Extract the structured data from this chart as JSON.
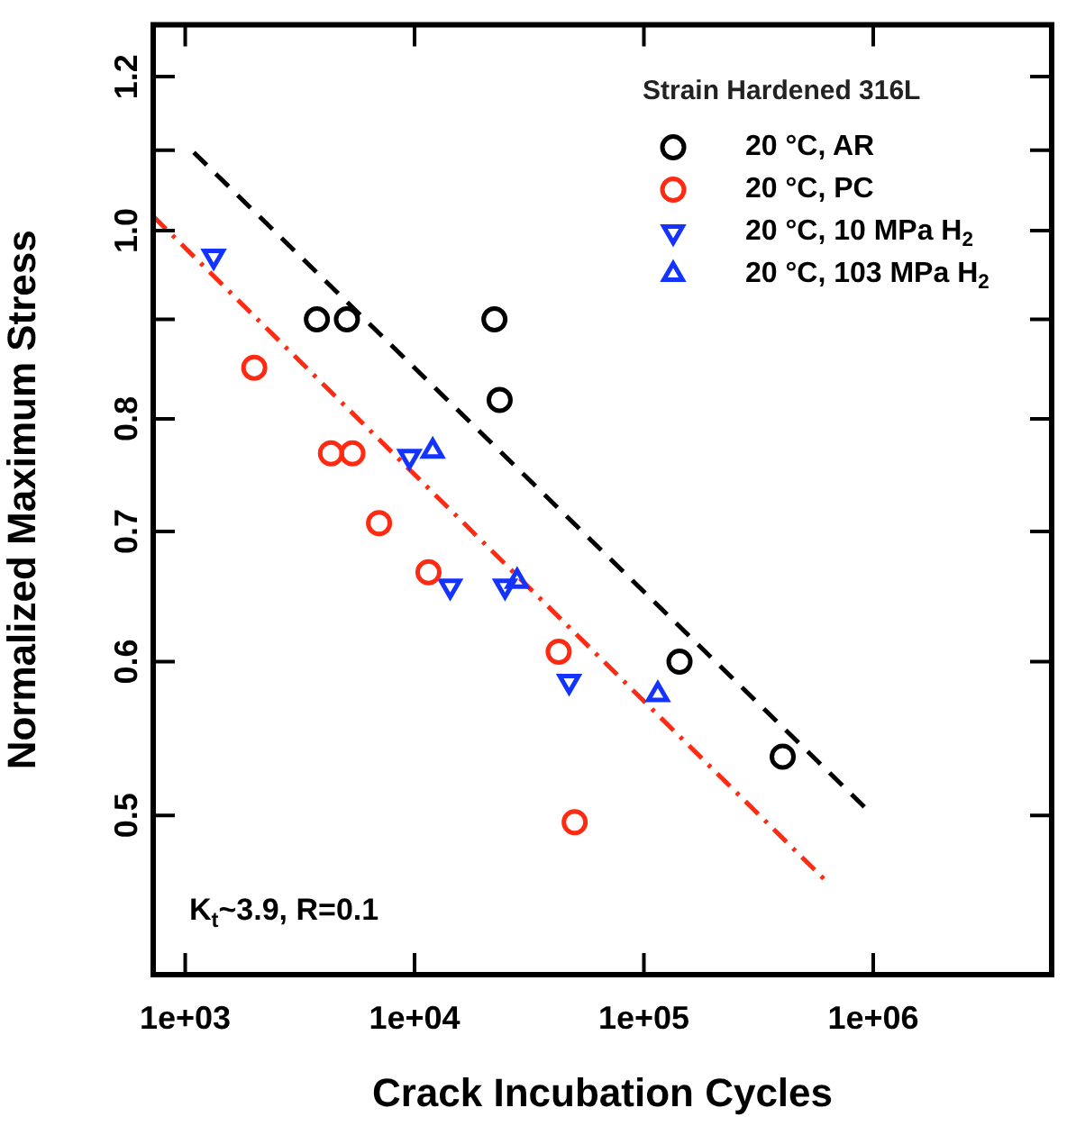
{
  "chart_data": {
    "type": "scatter",
    "xlabel": "Crack Incubation Cycles",
    "ylabel": "Normalized Maximum Stress",
    "legend_title": "Strain Hardened 316L",
    "log": "xy",
    "grid": false,
    "legend": "top right",
    "xlim": [
      725,
      6000000
    ],
    "ylim": [
      0.414,
      1.276
    ],
    "xticks": [
      {
        "value": 1000,
        "label": "1e+03"
      },
      {
        "value": 10000,
        "label": "1e+04"
      },
      {
        "value": 100000,
        "label": "1e+05"
      },
      {
        "value": 1000000,
        "label": "1e+06"
      }
    ],
    "yticks": [
      {
        "value": 0.5,
        "label": "0.5"
      },
      {
        "value": 0.6,
        "label": "0.6"
      },
      {
        "value": 0.7,
        "label": "0.7"
      },
      {
        "value": 0.8,
        "label": "0.8"
      },
      {
        "value": 0.9,
        "label": null
      },
      {
        "value": 1.0,
        "label": "1.0"
      },
      {
        "value": 1.1,
        "label": null
      },
      {
        "value": 1.2,
        "label": "1.2"
      }
    ],
    "annotations": [
      "K$_{t}$~3.9, R=0.1"
    ],
    "series": [
      {
        "name": "20 °C, AR",
        "color": "#000000",
        "marker": "circle",
        "x": [
          3750,
          5070,
          22300,
          23500,
          143000,
          403000
        ],
        "values": [
          0.9,
          0.9,
          0.9,
          0.818,
          0.6,
          0.536
        ]
      },
      {
        "name": "20 °C, PC",
        "color": "#ff2a12",
        "marker": "circle",
        "x": [
          2000,
          4320,
          5360,
          7000,
          11500,
          42500,
          49900
        ],
        "values": [
          0.85,
          0.768,
          0.768,
          0.707,
          0.667,
          0.607,
          0.496
        ]
      },
      {
        "name": "20 °C, 10 MPa H$_{2}$",
        "color": "#1433ff",
        "marker": "triangle-down",
        "x": [
          1330,
          9500,
          14300,
          24800,
          47200
        ],
        "values": [
          0.97,
          0.765,
          0.656,
          0.656,
          0.586
        ]
      },
      {
        "name": "20 °C, 103 MPa H$_{2}$",
        "color": "#1433ff",
        "marker": "triangle",
        "x": [
          12000,
          28000,
          115000
        ],
        "values": [
          0.77,
          0.66,
          0.577
        ]
      },
      {
        "type": "line",
        "color": "#000000",
        "line_style": "dashed",
        "marker": "none",
        "x": [
          1090,
          948000
        ],
        "values": [
          1.097,
          0.503
        ]
      },
      {
        "type": "line",
        "color": "#ff2a12",
        "line_style": "dashdot",
        "marker": "none",
        "x": [
          725,
          618000
        ],
        "values": [
          1.017,
          0.463
        ]
      }
    ]
  }
}
